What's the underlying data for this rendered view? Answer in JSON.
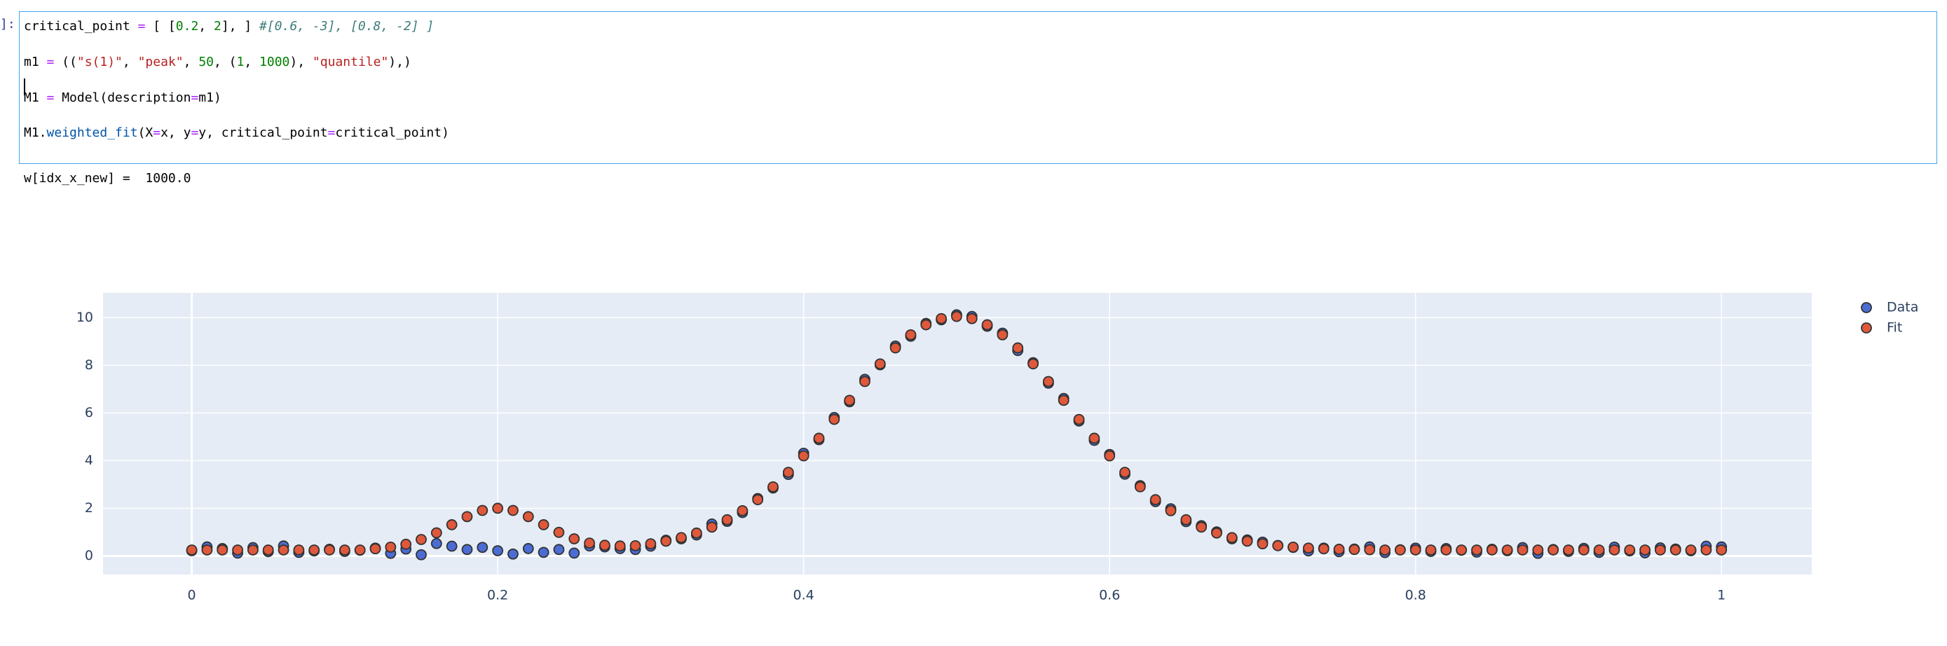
{
  "cell": {
    "prompt": "]:",
    "lines": [
      [
        "critical_point ",
        "=",
        " [ [",
        "0.2",
        ", ",
        "2",
        "], ] ",
        "#[0.6, -3], [0.8, -2] ]"
      ],
      [
        "m1 ",
        "=",
        " ((",
        "\"s(1)\"",
        ", ",
        "\"peak\"",
        ", ",
        "50",
        ", (",
        "1",
        ", ",
        "1000",
        "), ",
        "\"quantile\"",
        "),)"
      ],
      [
        "M1 ",
        "=",
        " Model(description",
        "=",
        "m1)"
      ],
      [
        "M1.",
        "weighted_fit",
        "(X",
        "=",
        "x, y",
        "=",
        "y, critical_point",
        "=",
        "critical_point)"
      ]
    ],
    "output": "w[idx_x_new] =  1000.0"
  },
  "chart_data": {
    "type": "scatter",
    "x": [
      0,
      0.01,
      0.02,
      0.03,
      0.04,
      0.05,
      0.06,
      0.07,
      0.08,
      0.09,
      0.1,
      0.11,
      0.12,
      0.13,
      0.14,
      0.15,
      0.16,
      0.17,
      0.18,
      0.19,
      0.2,
      0.21,
      0.22,
      0.23,
      0.24,
      0.25,
      0.26,
      0.27,
      0.28,
      0.29,
      0.3,
      0.31,
      0.32,
      0.33,
      0.34,
      0.35,
      0.36,
      0.37,
      0.38,
      0.39,
      0.4,
      0.41,
      0.42,
      0.43,
      0.44,
      0.45,
      0.46,
      0.47,
      0.48,
      0.49,
      0.5,
      0.51,
      0.52,
      0.53,
      0.54,
      0.55,
      0.56,
      0.57,
      0.58,
      0.59,
      0.6,
      0.61,
      0.62,
      0.63,
      0.64,
      0.65,
      0.66,
      0.67,
      0.68,
      0.69,
      0.7,
      0.71,
      0.72,
      0.73,
      0.74,
      0.75,
      0.76,
      0.77,
      0.78,
      0.79,
      0.8,
      0.81,
      0.82,
      0.83,
      0.84,
      0.85,
      0.86,
      0.87,
      0.88,
      0.89,
      0.9,
      0.91,
      0.92,
      0.93,
      0.94,
      0.95,
      0.96,
      0.97,
      0.98,
      0.99,
      1
    ],
    "series": [
      {
        "name": "Data",
        "color": "#4a6cd4",
        "values": [
          0.22,
          0.38,
          0.31,
          0.12,
          0.35,
          0.18,
          0.42,
          0.15,
          0.21,
          0.28,
          0.19,
          0.24,
          0.33,
          0.11,
          0.29,
          0.05,
          0.52,
          0.41,
          0.27,
          0.36,
          0.22,
          0.08,
          0.31,
          0.15,
          0.27,
          0.12,
          0.42,
          0.38,
          0.31,
          0.27,
          0.41,
          0.66,
          0.72,
          0.88,
          1.34,
          1.45,
          1.82,
          2.41,
          2.85,
          3.42,
          4.31,
          4.88,
          5.81,
          6.47,
          7.41,
          8.02,
          8.81,
          9.22,
          9.76,
          9.91,
          10.12,
          10.05,
          9.64,
          9.35,
          8.62,
          8.11,
          7.25,
          6.61,
          5.66,
          4.85,
          4.26,
          3.43,
          2.95,
          2.28,
          1.98,
          1.44,
          1.27,
          1.01,
          0.72,
          0.67,
          0.58,
          0.44,
          0.36,
          0.21,
          0.33,
          0.18,
          0.29,
          0.38,
          0.14,
          0.26,
          0.33,
          0.19,
          0.31,
          0.24,
          0.16,
          0.28,
          0.22,
          0.35,
          0.11,
          0.27,
          0.19,
          0.32,
          0.15,
          0.37,
          0.21,
          0.13,
          0.34,
          0.29,
          0.22,
          0.41,
          0.38
        ]
      },
      {
        "name": "Fit",
        "color": "#e0583b",
        "values": [
          0.25,
          0.25,
          0.25,
          0.25,
          0.25,
          0.25,
          0.25,
          0.25,
          0.25,
          0.25,
          0.25,
          0.25,
          0.3,
          0.37,
          0.49,
          0.69,
          0.97,
          1.31,
          1.65,
          1.91,
          2,
          1.91,
          1.65,
          1.31,
          0.99,
          0.72,
          0.54,
          0.45,
          0.42,
          0.43,
          0.51,
          0.62,
          0.77,
          0.96,
          1.21,
          1.52,
          1.9,
          2.36,
          2.9,
          3.51,
          4.2,
          4.94,
          5.73,
          6.53,
          7.32,
          8.06,
          8.73,
          9.28,
          9.7,
          9.96,
          10.05,
          9.96,
          9.7,
          9.28,
          8.73,
          8.06,
          7.32,
          6.53,
          5.73,
          4.94,
          4.2,
          3.51,
          2.9,
          2.36,
          1.9,
          1.52,
          1.21,
          0.96,
          0.77,
          0.62,
          0.51,
          0.43,
          0.37,
          0.33,
          0.3,
          0.28,
          0.27,
          0.26,
          0.25,
          0.25,
          0.25,
          0.25,
          0.25,
          0.25,
          0.25,
          0.25,
          0.25,
          0.25,
          0.25,
          0.25,
          0.25,
          0.25,
          0.25,
          0.25,
          0.25,
          0.25,
          0.25,
          0.25,
          0.25,
          0.25,
          0.25
        ]
      }
    ],
    "xlim": [
      -0.058,
      1.059
    ],
    "ylim": [
      -0.78,
      11.04
    ],
    "xticks": [
      0,
      0.2,
      0.4,
      0.6,
      0.8,
      1
    ],
    "yticks": [
      0,
      2,
      4,
      6,
      8,
      10
    ],
    "grid": true,
    "legend": "right"
  }
}
